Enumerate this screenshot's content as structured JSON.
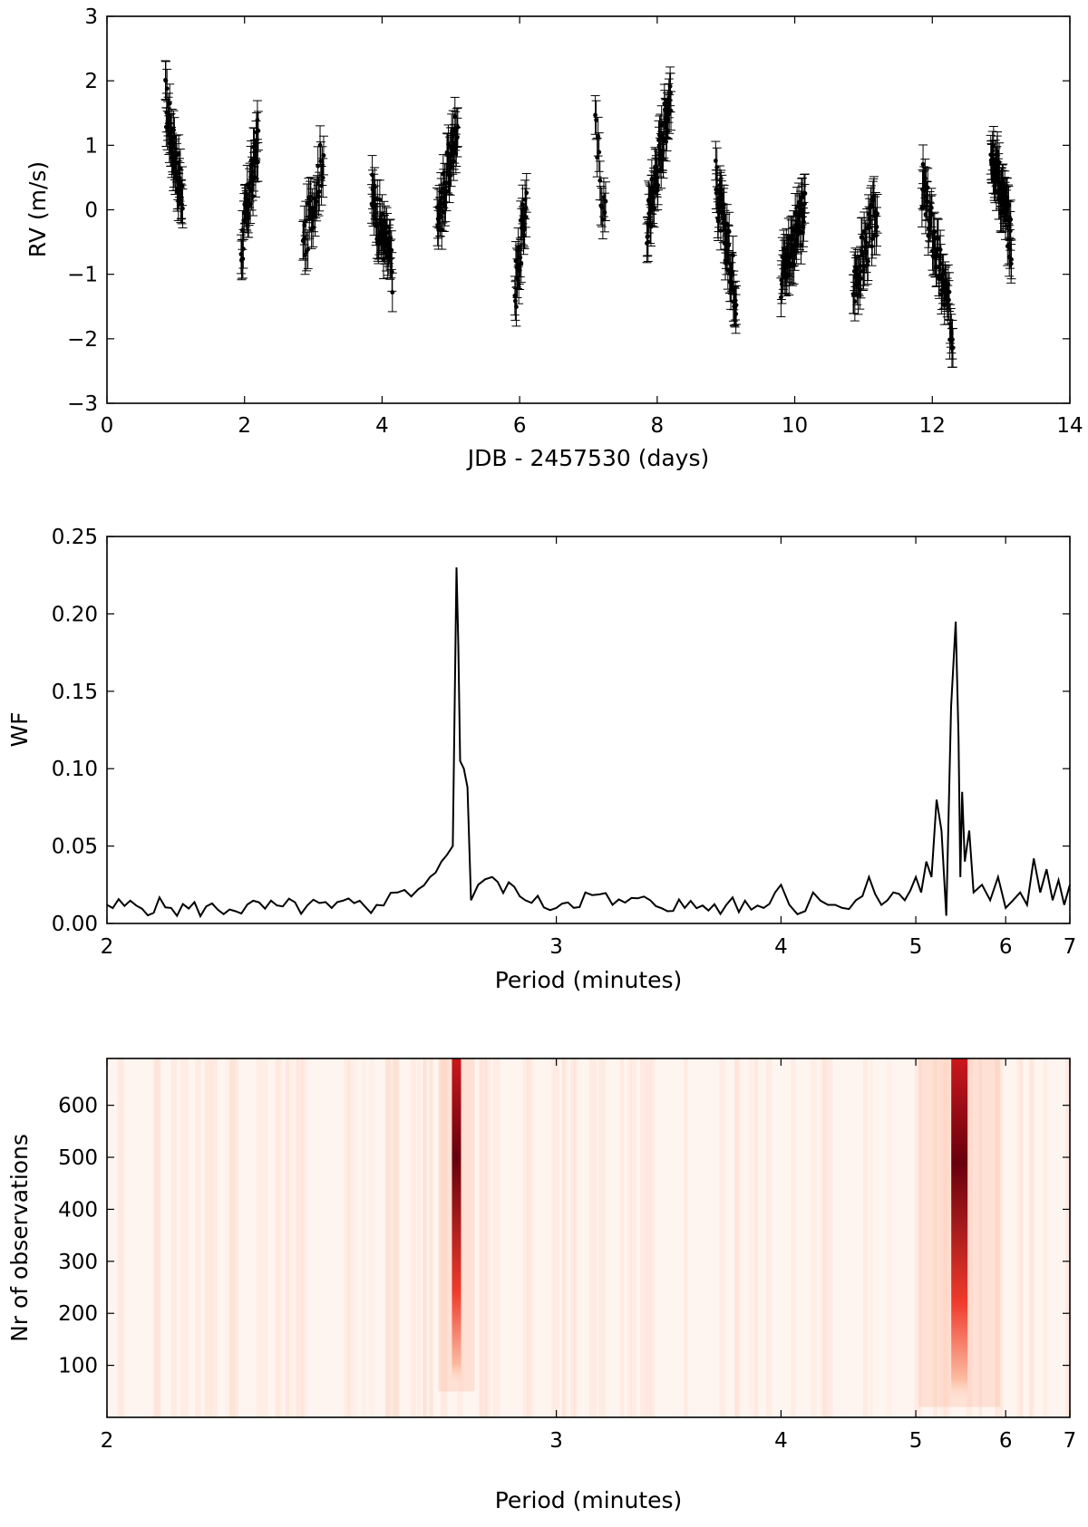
{
  "chart_data": [
    {
      "type": "scatter",
      "error_bars": true,
      "xlabel": "JDB - 2457530 (days)",
      "ylabel": "RV (m/s)",
      "xlim": [
        0,
        14
      ],
      "ylim": [
        -3,
        3
      ],
      "xticks": [
        "0",
        "2",
        "4",
        "6",
        "8",
        "10",
        "12",
        "14"
      ],
      "yticks": [
        "−3",
        "−2",
        "−1",
        "0",
        "1",
        "2",
        "3"
      ],
      "marker_color": "#000000",
      "errorbar_halfwidth_ms": 0.3,
      "nights": [
        {
          "x": [
            0.85,
            1.1
          ],
          "y_start": 1.7,
          "y_end": 0.1,
          "n": 45
        },
        {
          "x": [
            1.95,
            2.2
          ],
          "y_start": -0.6,
          "y_end": 1.1,
          "n": 40
        },
        {
          "x": [
            2.85,
            3.15
          ],
          "y_start": -0.6,
          "y_end": 0.9,
          "n": 30
        },
        {
          "x": [
            3.85,
            4.15
          ],
          "y_start": 0.2,
          "y_end": -0.9,
          "n": 45
        },
        {
          "x": [
            4.8,
            5.1
          ],
          "y_start": -0.3,
          "y_end": 1.4,
          "n": 45
        },
        {
          "x": [
            5.93,
            6.1
          ],
          "y_start": -1.3,
          "y_end": 0.2,
          "n": 25
        },
        {
          "x": [
            7.1,
            7.25
          ],
          "y_start": 1.2,
          "y_end": -0.2,
          "n": 12
        },
        {
          "x": [
            7.85,
            8.2
          ],
          "y_start": -0.3,
          "y_end": 1.9,
          "n": 60
        },
        {
          "x": [
            8.85,
            9.15
          ],
          "y_start": 0.4,
          "y_end": -1.3,
          "n": 50
        },
        {
          "x": [
            9.8,
            10.15
          ],
          "y_start": -1.0,
          "y_end": 0.0,
          "n": 55
        },
        {
          "x": [
            10.85,
            11.2
          ],
          "y_start": -1.2,
          "y_end": 0.0,
          "n": 45
        },
        {
          "x": [
            11.85,
            12.3
          ],
          "y_start": 0.4,
          "y_end": -1.9,
          "n": 60
        },
        {
          "x": [
            12.85,
            13.15
          ],
          "y_start": 1.1,
          "y_end": -0.5,
          "n": 60
        }
      ]
    },
    {
      "type": "line",
      "xlabel": "Period (minutes)",
      "ylabel": "WF",
      "xscale": "reciprocal",
      "xlim": [
        2,
        7
      ],
      "ylim": [
        0,
        0.25
      ],
      "xticks": [
        "2",
        "3",
        "4",
        "5",
        "6",
        "7"
      ],
      "yticks": [
        "0.00",
        "0.05",
        "0.10",
        "0.15",
        "0.20",
        "0.25"
      ],
      "line_color": "#000000",
      "x": [
        2.0,
        2.1,
        2.2,
        2.3,
        2.4,
        2.5,
        2.55,
        2.6,
        2.63,
        2.66,
        2.69,
        2.7,
        2.705,
        2.71,
        2.72,
        2.73,
        2.74,
        2.76,
        2.8,
        2.9,
        3.0,
        3.1,
        3.2,
        3.35,
        3.5,
        3.7,
        3.9,
        4.0,
        4.05,
        4.1,
        4.2,
        4.3,
        4.4,
        4.5,
        4.6,
        4.7,
        4.8,
        4.9,
        5.0,
        5.05,
        5.1,
        5.15,
        5.2,
        5.25,
        5.3,
        5.35,
        5.4,
        5.43,
        5.45,
        5.47,
        5.5,
        5.55,
        5.6,
        5.7,
        5.8,
        5.9,
        6.0,
        6.1,
        6.2,
        6.3,
        6.4,
        6.5,
        6.6,
        6.7,
        6.8,
        6.9,
        7.0
      ],
      "y": [
        0.012,
        0.01,
        0.009,
        0.011,
        0.01,
        0.012,
        0.02,
        0.022,
        0.03,
        0.04,
        0.05,
        0.23,
        0.18,
        0.105,
        0.1,
        0.088,
        0.015,
        0.025,
        0.03,
        0.015,
        0.01,
        0.02,
        0.012,
        0.015,
        0.01,
        0.012,
        0.01,
        0.025,
        0.012,
        0.006,
        0.02,
        0.012,
        0.01,
        0.015,
        0.03,
        0.012,
        0.02,
        0.015,
        0.03,
        0.02,
        0.04,
        0.03,
        0.08,
        0.06,
        0.005,
        0.14,
        0.195,
        0.12,
        0.03,
        0.085,
        0.04,
        0.06,
        0.02,
        0.025,
        0.015,
        0.03,
        0.01,
        0.015,
        0.02,
        0.012,
        0.042,
        0.02,
        0.035,
        0.015,
        0.028,
        0.012,
        0.025
      ]
    },
    {
      "type": "heatmap",
      "xlabel": "Period (minutes)",
      "ylabel": "Nr of observations",
      "xscale": "reciprocal",
      "xlim": [
        2,
        7
      ],
      "ylim": [
        0,
        690
      ],
      "xticks": [
        "2",
        "3",
        "4",
        "5",
        "6",
        "7"
      ],
      "yticks": [
        "100",
        "200",
        "300",
        "400",
        "500",
        "600"
      ],
      "colormap": "Reds",
      "color_low": "#fff5f0",
      "color_high": "#67000d",
      "ridges": [
        {
          "period": 2.7,
          "y_from": 50,
          "y_to": 690,
          "peak_at": 470
        },
        {
          "period": 5.44,
          "y_from": 20,
          "y_to": 690,
          "peak_at": 560
        }
      ]
    }
  ]
}
